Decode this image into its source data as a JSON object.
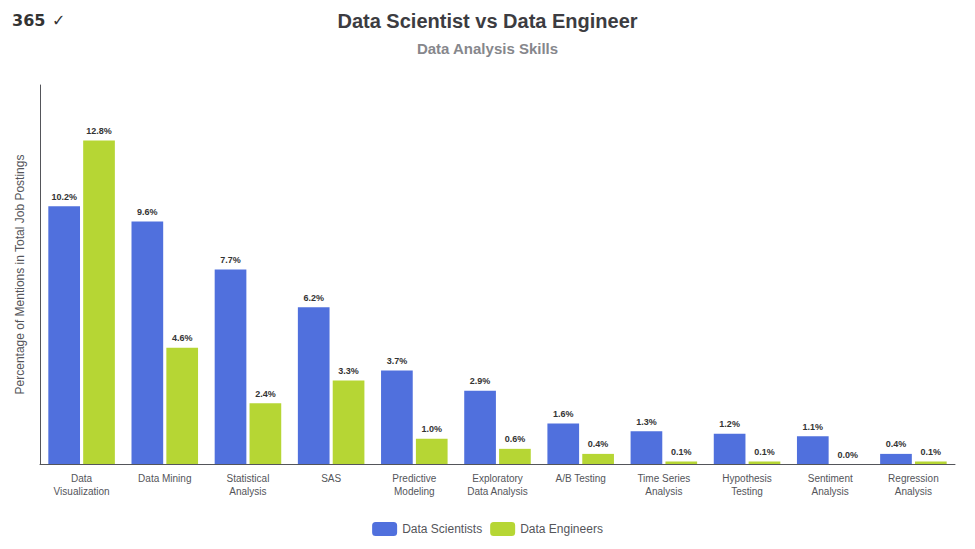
{
  "chart_data": {
    "type": "bar",
    "title": "Data Scientist vs Data Engineer",
    "subtitle": "Data Analysis Skills",
    "ylabel": "Percentage of Mentions in Total Job Postings",
    "annotations": [
      "365",
      "✓"
    ],
    "categories": [
      "Data\nVisualization",
      "Data Mining",
      "Statistical\nAnalysis",
      "SAS",
      "Predictive\nModeling",
      "Exploratory\nData Analysis",
      "A/B Testing",
      "Time Series\nAnalysis",
      "Hypothesis\nTesting",
      "Sentiment\nAnalysis",
      "Regression\nAnalysis"
    ],
    "series": [
      {
        "name": "Data Scientists",
        "values": [
          10.2,
          9.6,
          7.7,
          6.2,
          3.7,
          2.9,
          1.6,
          1.3,
          1.2,
          1.1,
          0.4
        ],
        "value_labels": [
          "10.2%",
          "9.6%",
          "7.7%",
          "6.2%",
          "3.7%",
          "2.9%",
          "1.6%",
          "1.3%",
          "1.2%",
          "1.1%",
          "0.4%"
        ]
      },
      {
        "name": "Data Engineers",
        "values": [
          12.8,
          4.6,
          2.4,
          3.3,
          1.0,
          0.6,
          0.4,
          0.1,
          0.1,
          0.0,
          0.1
        ],
        "value_labels": [
          "12.8%",
          "4.6%",
          "2.4%",
          "3.3%",
          "1.0%",
          "0.6%",
          "0.4%",
          "0.1%",
          "0.1%",
          "0.0%",
          "0.1%"
        ]
      }
    ],
    "ylim": [
      0,
      15
    ],
    "grid": false,
    "legend": "bottom",
    "data_labels": true,
    "tick_labels": "x"
  }
}
